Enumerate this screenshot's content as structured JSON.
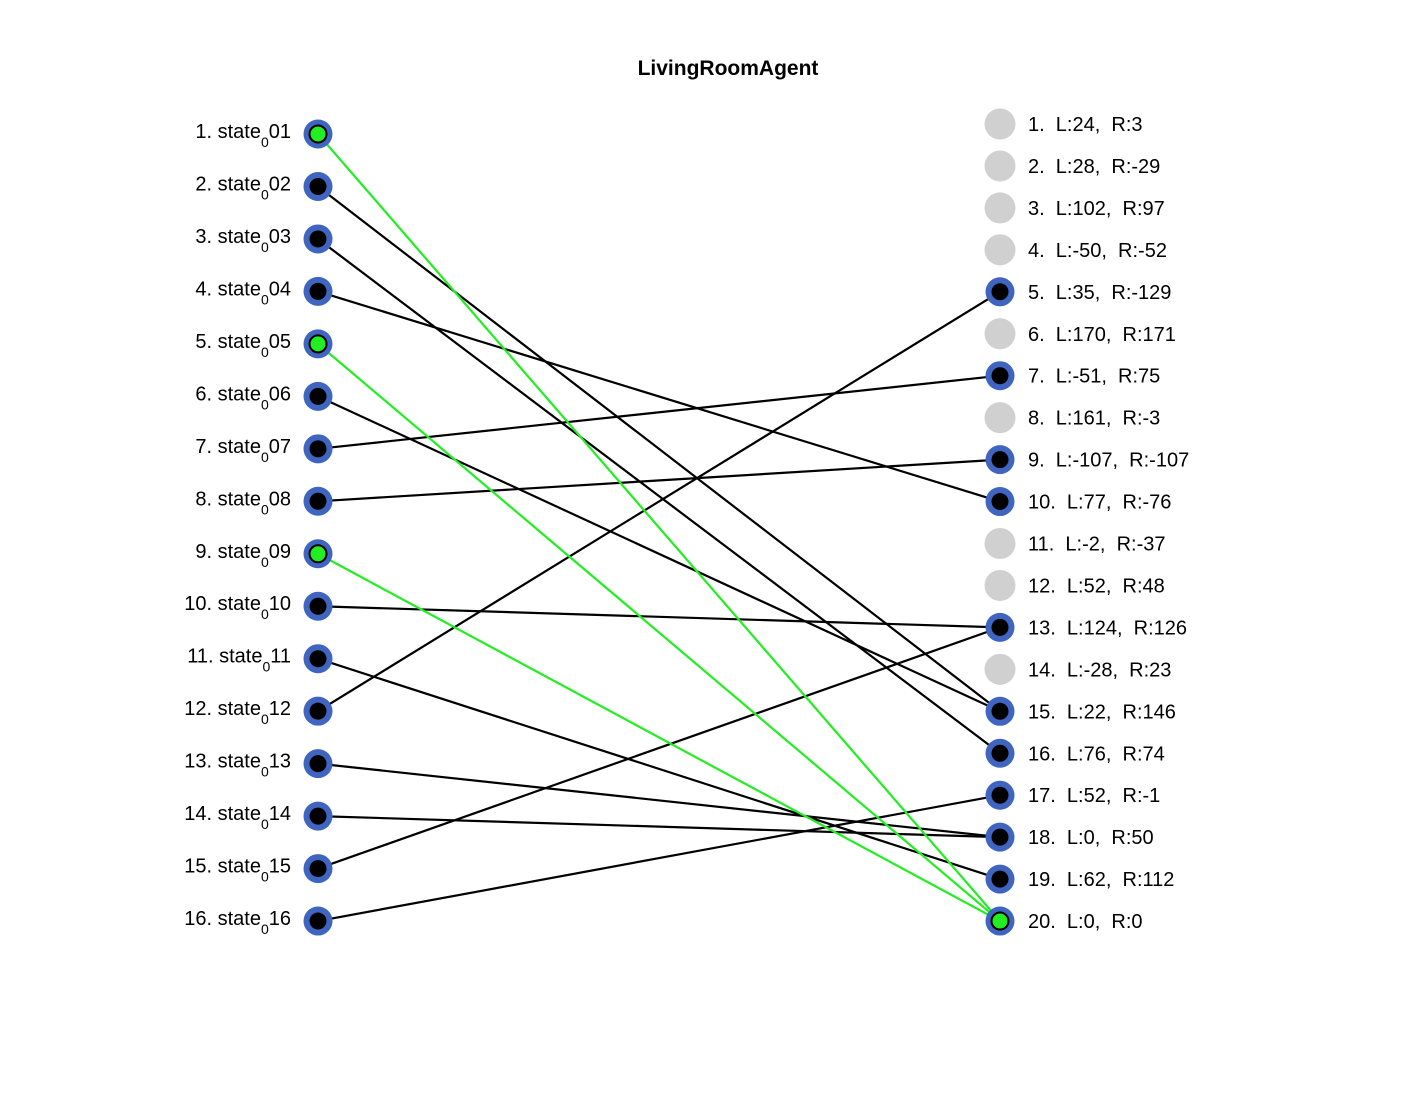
{
  "title": "LivingRoomAgent",
  "colors": {
    "node_ring": "#3f65c0",
    "node_fill": "#000000",
    "node_active_fill": "#22ee22",
    "node_inactive": "#d0d0d0",
    "edge": "#000000",
    "edge_active": "#22ee22"
  },
  "left_nodes": [
    {
      "index": "1.",
      "base": "state",
      "sub": "0",
      "suffix": "01",
      "active": true
    },
    {
      "index": "2.",
      "base": "state",
      "sub": "0",
      "suffix": "02",
      "active": false
    },
    {
      "index": "3.",
      "base": "state",
      "sub": "0",
      "suffix": "03",
      "active": false
    },
    {
      "index": "4.",
      "base": "state",
      "sub": "0",
      "suffix": "04",
      "active": false
    },
    {
      "index": "5.",
      "base": "state",
      "sub": "0",
      "suffix": "05",
      "active": true
    },
    {
      "index": "6.",
      "base": "state",
      "sub": "0",
      "suffix": "06",
      "active": false
    },
    {
      "index": "7.",
      "base": "state",
      "sub": "0",
      "suffix": "07",
      "active": false
    },
    {
      "index": "8.",
      "base": "state",
      "sub": "0",
      "suffix": "08",
      "active": false
    },
    {
      "index": "9.",
      "base": "state",
      "sub": "0",
      "suffix": "09",
      "active": true
    },
    {
      "index": "10.",
      "base": "state",
      "sub": "0",
      "suffix": "10",
      "active": false
    },
    {
      "index": "11.",
      "base": "state",
      "sub": "0",
      "suffix": "11",
      "active": false
    },
    {
      "index": "12.",
      "base": "state",
      "sub": "0",
      "suffix": "12",
      "active": false
    },
    {
      "index": "13.",
      "base": "state",
      "sub": "0",
      "suffix": "13",
      "active": false
    },
    {
      "index": "14.",
      "base": "state",
      "sub": "0",
      "suffix": "14",
      "active": false
    },
    {
      "index": "15.",
      "base": "state",
      "sub": "0",
      "suffix": "15",
      "active": false
    },
    {
      "index": "16.",
      "base": "state",
      "sub": "0",
      "suffix": "16",
      "active": false
    }
  ],
  "right_nodes": [
    {
      "label": "1.  L:24,  R:3",
      "status": "inactive"
    },
    {
      "label": "2.  L:28,  R:-29",
      "status": "inactive"
    },
    {
      "label": "3.  L:102,  R:97",
      "status": "inactive"
    },
    {
      "label": "4.  L:-50,  R:-52",
      "status": "inactive"
    },
    {
      "label": "5.  L:35,  R:-129",
      "status": "used"
    },
    {
      "label": "6.  L:170,  R:171",
      "status": "inactive"
    },
    {
      "label": "7.  L:-51,  R:75",
      "status": "used"
    },
    {
      "label": "8.  L:161,  R:-3",
      "status": "inactive"
    },
    {
      "label": "9.  L:-107,  R:-107",
      "status": "used"
    },
    {
      "label": "10.  L:77,  R:-76",
      "status": "used"
    },
    {
      "label": "11.  L:-2,  R:-37",
      "status": "inactive"
    },
    {
      "label": "12.  L:52,  R:48",
      "status": "inactive"
    },
    {
      "label": "13.  L:124,  R:126",
      "status": "used"
    },
    {
      "label": "14.  L:-28,  R:23",
      "status": "inactive"
    },
    {
      "label": "15.  L:22,  R:146",
      "status": "used"
    },
    {
      "label": "16.  L:76,  R:74",
      "status": "used"
    },
    {
      "label": "17.  L:52,  R:-1",
      "status": "used"
    },
    {
      "label": "18.  L:0,  R:50",
      "status": "used"
    },
    {
      "label": "19.  L:62,  R:112",
      "status": "used"
    },
    {
      "label": "20.  L:0,  R:0",
      "status": "active"
    }
  ],
  "edges": [
    {
      "from": 1,
      "to": 20,
      "active": true
    },
    {
      "from": 2,
      "to": 15,
      "active": false
    },
    {
      "from": 3,
      "to": 16,
      "active": false
    },
    {
      "from": 4,
      "to": 10,
      "active": false
    },
    {
      "from": 5,
      "to": 20,
      "active": true
    },
    {
      "from": 6,
      "to": 15,
      "active": false
    },
    {
      "from": 7,
      "to": 7,
      "active": false
    },
    {
      "from": 8,
      "to": 9,
      "active": false
    },
    {
      "from": 9,
      "to": 20,
      "active": true
    },
    {
      "from": 10,
      "to": 13,
      "active": false
    },
    {
      "from": 11,
      "to": 19,
      "active": false
    },
    {
      "from": 12,
      "to": 5,
      "active": false
    },
    {
      "from": 13,
      "to": 18,
      "active": false
    },
    {
      "from": 14,
      "to": 18,
      "active": false
    },
    {
      "from": 15,
      "to": 13,
      "active": false
    },
    {
      "from": 16,
      "to": 17,
      "active": false
    }
  ]
}
